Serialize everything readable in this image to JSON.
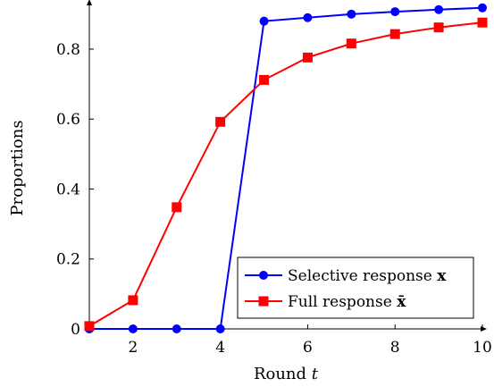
{
  "chart_data": {
    "type": "line",
    "xlabel": "Round",
    "xlabel_var": "t",
    "ylabel": "Proportions",
    "xlim": [
      1,
      10
    ],
    "ylim": [
      0,
      0.92
    ],
    "x_ticks": [
      2,
      4,
      6,
      8,
      10
    ],
    "y_ticks": [
      0,
      0.2,
      0.4,
      0.6,
      0.8
    ],
    "y_tick_labels": [
      "0",
      "0.2",
      "0.4",
      "0.6",
      "0.8"
    ],
    "grid": false,
    "legend_position": "bottom-right",
    "x": [
      1,
      2,
      3,
      4,
      5,
      6,
      7,
      8,
      9,
      10
    ],
    "series": [
      {
        "name": "Selective response",
        "name_math": "x",
        "color": "#0000ff",
        "marker": "circle",
        "values": [
          0,
          0,
          0,
          0,
          0.88,
          0.89,
          0.9,
          0.907,
          0.913,
          0.918
        ]
      },
      {
        "name": "Full response",
        "name_math": "x̄",
        "color": "#ff0000",
        "marker": "square",
        "values": [
          0.008,
          0.082,
          0.348,
          0.592,
          0.712,
          0.776,
          0.816,
          0.843,
          0.862,
          0.876
        ]
      }
    ]
  }
}
